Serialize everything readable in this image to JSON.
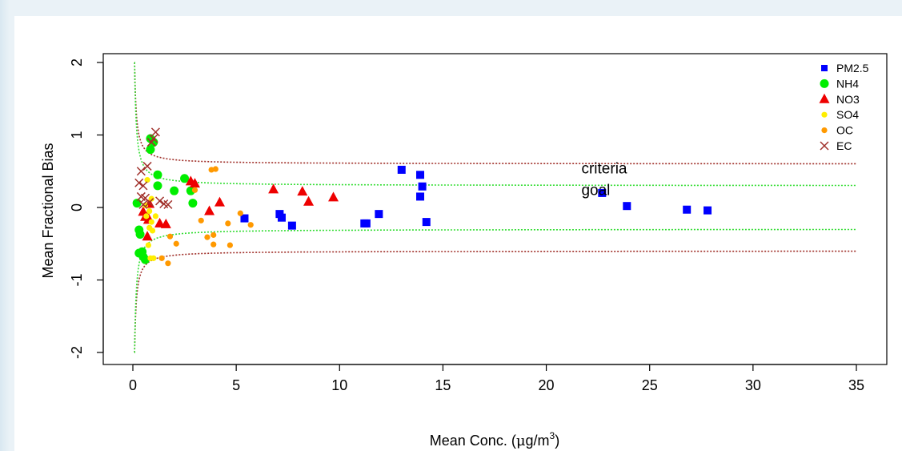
{
  "chart_data": {
    "type": "scatter",
    "title": "",
    "xlabel": "Mean Conc. (μg/m³)",
    "xlabel_parts": {
      "main": "Mean Conc. (",
      "mu": "μ",
      "g": "g/m",
      "sup": "3",
      "close": ")"
    },
    "ylabel": "Mean Fractional Bias",
    "xlim": [
      0,
      35
    ],
    "ylim": [
      -2,
      2
    ],
    "xticks": [
      0,
      5,
      10,
      15,
      20,
      25,
      30,
      35
    ],
    "yticks": [
      -2,
      -1,
      0,
      1,
      2
    ],
    "grid": false,
    "legend_position": "top-right",
    "annotations": [
      {
        "text": "criteria",
        "x": 21.7,
        "y": 0.47
      },
      {
        "text": "goal",
        "x": 21.7,
        "y": 0.17
      }
    ],
    "reference_curves": [
      {
        "name": "criteria",
        "color": "#a0302a",
        "asymptote": 0.6,
        "style": "dotted"
      },
      {
        "name": "goal",
        "color": "#33dd33",
        "asymptote": 0.3,
        "style": "dotted"
      }
    ],
    "series": [
      {
        "name": "PM2.5",
        "marker": "square",
        "color": "#0000ff",
        "points": [
          [
            5.4,
            -0.15
          ],
          [
            7.1,
            -0.09
          ],
          [
            7.2,
            -0.14
          ],
          [
            7.7,
            -0.25
          ],
          [
            11.2,
            -0.22
          ],
          [
            11.3,
            -0.22
          ],
          [
            11.9,
            -0.09
          ],
          [
            13.0,
            0.52
          ],
          [
            13.9,
            0.45
          ],
          [
            14.0,
            0.29
          ],
          [
            13.9,
            0.15
          ],
          [
            14.2,
            -0.2
          ],
          [
            22.7,
            0.2
          ],
          [
            23.9,
            0.02
          ],
          [
            26.8,
            -0.03
          ],
          [
            27.8,
            -0.04
          ]
        ]
      },
      {
        "name": "NH4",
        "marker": "circle",
        "color": "#00ee00",
        "points": [
          [
            0.2,
            0.06
          ],
          [
            0.3,
            -0.31
          ],
          [
            0.35,
            -0.37
          ],
          [
            0.3,
            -0.63
          ],
          [
            0.45,
            -0.61
          ],
          [
            0.5,
            -0.68
          ],
          [
            0.6,
            -0.72
          ],
          [
            0.85,
            0.8
          ],
          [
            0.85,
            0.95
          ],
          [
            1.0,
            0.9
          ],
          [
            1.2,
            0.45
          ],
          [
            1.2,
            0.3
          ],
          [
            2.0,
            0.23
          ],
          [
            2.5,
            0.4
          ],
          [
            2.8,
            0.23
          ],
          [
            2.9,
            0.06
          ]
        ]
      },
      {
        "name": "NO3",
        "marker": "triangle",
        "color": "#ee0000",
        "points": [
          [
            0.5,
            -0.06
          ],
          [
            0.6,
            -0.13
          ],
          [
            0.7,
            -0.12
          ],
          [
            0.75,
            -0.17
          ],
          [
            0.8,
            0.05
          ],
          [
            1.3,
            -0.22
          ],
          [
            1.6,
            -0.23
          ],
          [
            0.7,
            -0.4
          ],
          [
            2.8,
            0.36
          ],
          [
            3.0,
            0.33
          ],
          [
            3.7,
            -0.05
          ],
          [
            4.2,
            0.07
          ],
          [
            6.8,
            0.25
          ],
          [
            8.2,
            0.22
          ],
          [
            8.5,
            0.08
          ],
          [
            9.7,
            0.14
          ]
        ]
      },
      {
        "name": "SO4",
        "marker": "circle-small",
        "color": "#ffee00",
        "points": [
          [
            0.6,
            0.03
          ],
          [
            0.65,
            -0.12
          ],
          [
            0.7,
            0.38
          ],
          [
            0.8,
            -0.05
          ],
          [
            0.8,
            -0.28
          ],
          [
            0.75,
            -0.52
          ],
          [
            0.85,
            -0.7
          ],
          [
            0.9,
            0.12
          ],
          [
            1.0,
            -0.7
          ],
          [
            0.95,
            -0.32
          ],
          [
            1.1,
            -0.12
          ],
          [
            0.9,
            -0.2
          ]
        ]
      },
      {
        "name": "OC",
        "marker": "circle-small",
        "color": "#ff9900",
        "points": [
          [
            1.7,
            -0.77
          ],
          [
            1.8,
            -0.4
          ],
          [
            2.1,
            -0.5
          ],
          [
            3.0,
            0.24
          ],
          [
            3.3,
            -0.18
          ],
          [
            3.6,
            -0.41
          ],
          [
            3.9,
            -0.38
          ],
          [
            3.8,
            0.52
          ],
          [
            4.0,
            0.53
          ],
          [
            3.9,
            -0.51
          ],
          [
            4.6,
            -0.22
          ],
          [
            4.7,
            -0.52
          ],
          [
            5.2,
            -0.08
          ],
          [
            5.7,
            -0.24
          ],
          [
            1.4,
            -0.7
          ]
        ]
      },
      {
        "name": "EC",
        "marker": "x",
        "color": "#a0302a",
        "points": [
          [
            0.3,
            0.34
          ],
          [
            0.4,
            0.5
          ],
          [
            0.4,
            0.15
          ],
          [
            0.5,
            0.3
          ],
          [
            0.5,
            0.04
          ],
          [
            0.6,
            0.13
          ],
          [
            0.7,
            0.57
          ],
          [
            0.8,
            0.07
          ],
          [
            0.9,
            0.9
          ],
          [
            1.1,
            1.04
          ],
          [
            1.0,
            0.95
          ],
          [
            1.3,
            0.09
          ],
          [
            1.5,
            0.05
          ],
          [
            1.7,
            0.04
          ]
        ]
      }
    ]
  }
}
